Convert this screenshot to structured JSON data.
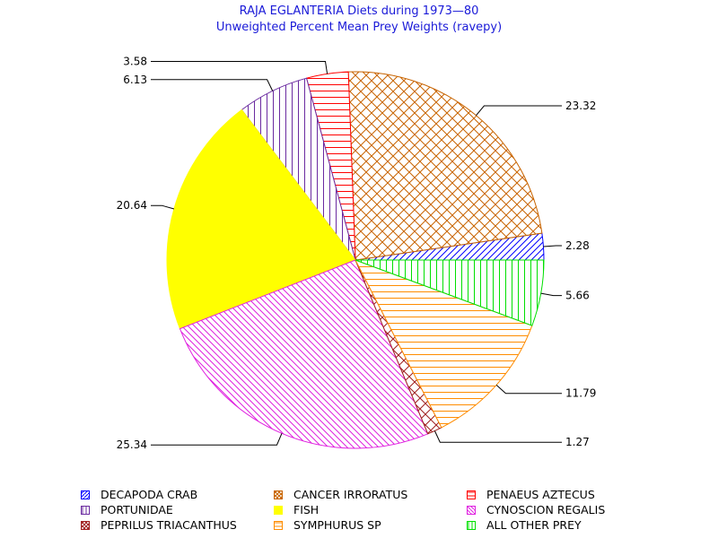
{
  "chart_data": {
    "type": "pie",
    "title": "RAJA EGLANTERIA Diets during 1973—80",
    "subtitle": "Unweighted Percent Mean Prey Weights (ravepy)",
    "slices": [
      {
        "label": "DECAPODA CRAB",
        "value": 2.28,
        "value_label": "2.28",
        "color": "#0000ff",
        "pattern": "diag-right"
      },
      {
        "label": "CANCER IRRORATUS",
        "value": 23.32,
        "value_label": "23.32",
        "color": "#c86400",
        "pattern": "crosshatch"
      },
      {
        "label": "PENAEUS AZTECUS",
        "value": 3.58,
        "value_label": "3.58",
        "color": "#ff0000",
        "pattern": "horizontal"
      },
      {
        "label": "PORTUNIDAE",
        "value": 6.13,
        "value_label": "6.13",
        "color": "#6a2aa0",
        "pattern": "vertical"
      },
      {
        "label": "FISH",
        "value": 20.64,
        "value_label": "20.64",
        "color": "#ffff00",
        "pattern": "solid"
      },
      {
        "label": "CYNOSCION REGALIS",
        "value": 25.34,
        "value_label": "25.34",
        "color": "#e020e0",
        "pattern": "diag-left"
      },
      {
        "label": "PEPRILUS TRIACANTHUS",
        "value": 1.27,
        "value_label": "1.27",
        "color": "#a02020",
        "pattern": "crosshatch"
      },
      {
        "label": "SYMPHURUS SP",
        "value": 11.79,
        "value_label": "11.79",
        "color": "#ff8c00",
        "pattern": "horizontal"
      },
      {
        "label": "ALL OTHER PREY",
        "value": 5.66,
        "value_label": "5.66",
        "color": "#00e000",
        "pattern": "vertical"
      }
    ],
    "legend_position": "bottom"
  }
}
